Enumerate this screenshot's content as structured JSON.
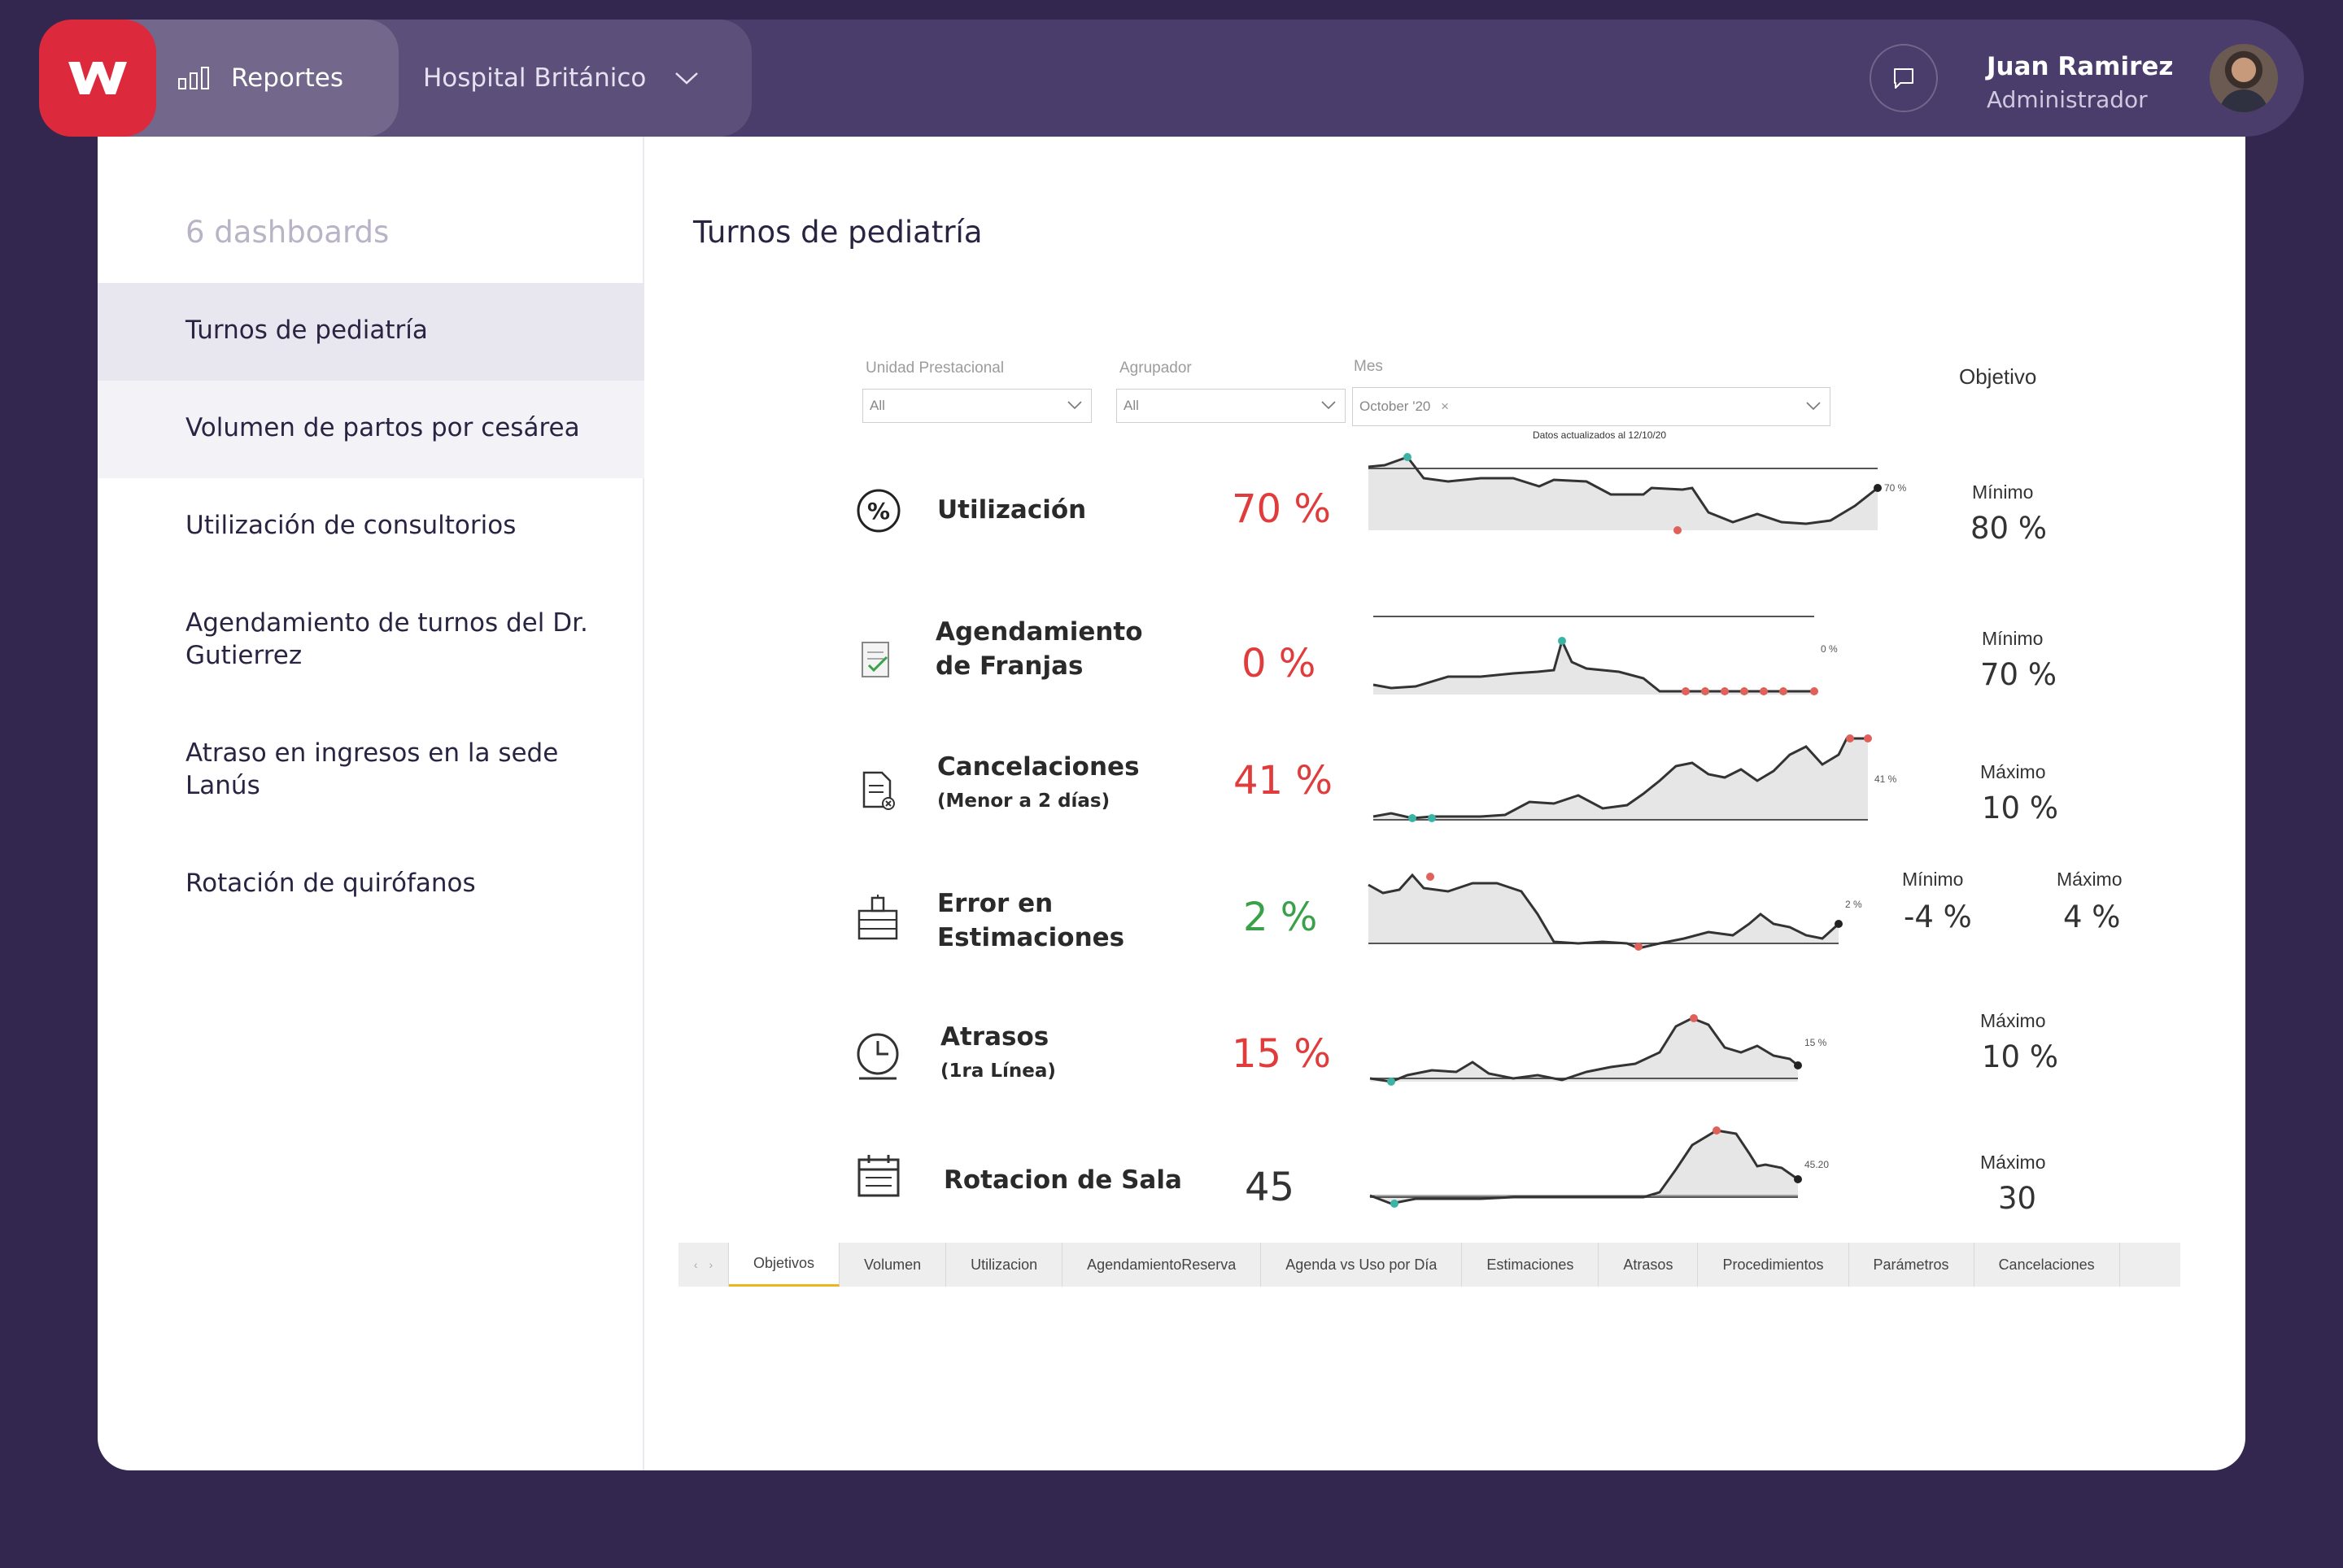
{
  "header": {
    "nav_label": "Reportes",
    "hospital": "Hospital Británico",
    "user_name": "Juan Ramirez",
    "user_role": "Administrador"
  },
  "sidebar": {
    "title": "6 dashboards",
    "items": [
      {
        "label": "Turnos de pediatría"
      },
      {
        "label": "Volumen de partos por cesárea"
      },
      {
        "label": "Utilización de consultorios"
      },
      {
        "label": "Agendamiento de turnos del Dr. Gutierrez"
      },
      {
        "label": "Atraso en ingresos en la sede Lanús"
      },
      {
        "label": "Rotación de quirófanos"
      }
    ]
  },
  "main": {
    "title": "Turnos de pediatría"
  },
  "report": {
    "filters": [
      {
        "label": "Unidad Prestacional",
        "value": "All"
      },
      {
        "label": "Agrupador",
        "value": "All"
      },
      {
        "label": "Mes",
        "value": "October '20"
      }
    ],
    "updated": "Datos actualizados al 12/10/20",
    "objective_header": "Objetivo",
    "metrics": [
      {
        "name": "Utilización",
        "sub": "",
        "value": "70 %",
        "spark_label": "70 %",
        "obj": [
          {
            "label": "Mínimo",
            "value": "80 %"
          }
        ]
      },
      {
        "name": "Agendamiento",
        "name2": "de Franjas",
        "value": "0 %",
        "spark_label": "0 %",
        "obj": [
          {
            "label": "Mínimo",
            "value": "70 %"
          }
        ]
      },
      {
        "name": "Cancelaciones",
        "sub": "(Menor a 2 días)",
        "value": "41 %",
        "spark_label": "41 %",
        "obj": [
          {
            "label": "Máximo",
            "value": "10 %"
          }
        ]
      },
      {
        "name": "Error en",
        "name2": "Estimaciones",
        "value": "2 %",
        "spark_label": "2 %",
        "obj": [
          {
            "label": "Mínimo",
            "value": "-4 %"
          },
          {
            "label": "Máximo",
            "value": "4 %"
          }
        ]
      },
      {
        "name": "Atrasos",
        "sub": "(1ra Línea)",
        "value": "15 %",
        "spark_label": "15 %",
        "obj": [
          {
            "label": "Máximo",
            "value": "10 %"
          }
        ]
      },
      {
        "name": "Rotacion de Sala",
        "value": "45",
        "spark_label": "45.20",
        "obj": [
          {
            "label": "Máximo",
            "value": "30"
          }
        ]
      }
    ],
    "tabs": [
      "Objetivos",
      "Volumen",
      "Utilizacion",
      "AgendamientoReserva",
      "Agenda vs Uso por Día",
      "Estimaciones",
      "Atrasos",
      "Procedimientos",
      "Parámetros",
      "Cancelaciones"
    ]
  },
  "colors": {
    "background": "#33264f",
    "brand": "#dc2a3c",
    "bad": "#e03c3c",
    "good": "#3aa04a",
    "accent_tab": "#e8b61f"
  }
}
